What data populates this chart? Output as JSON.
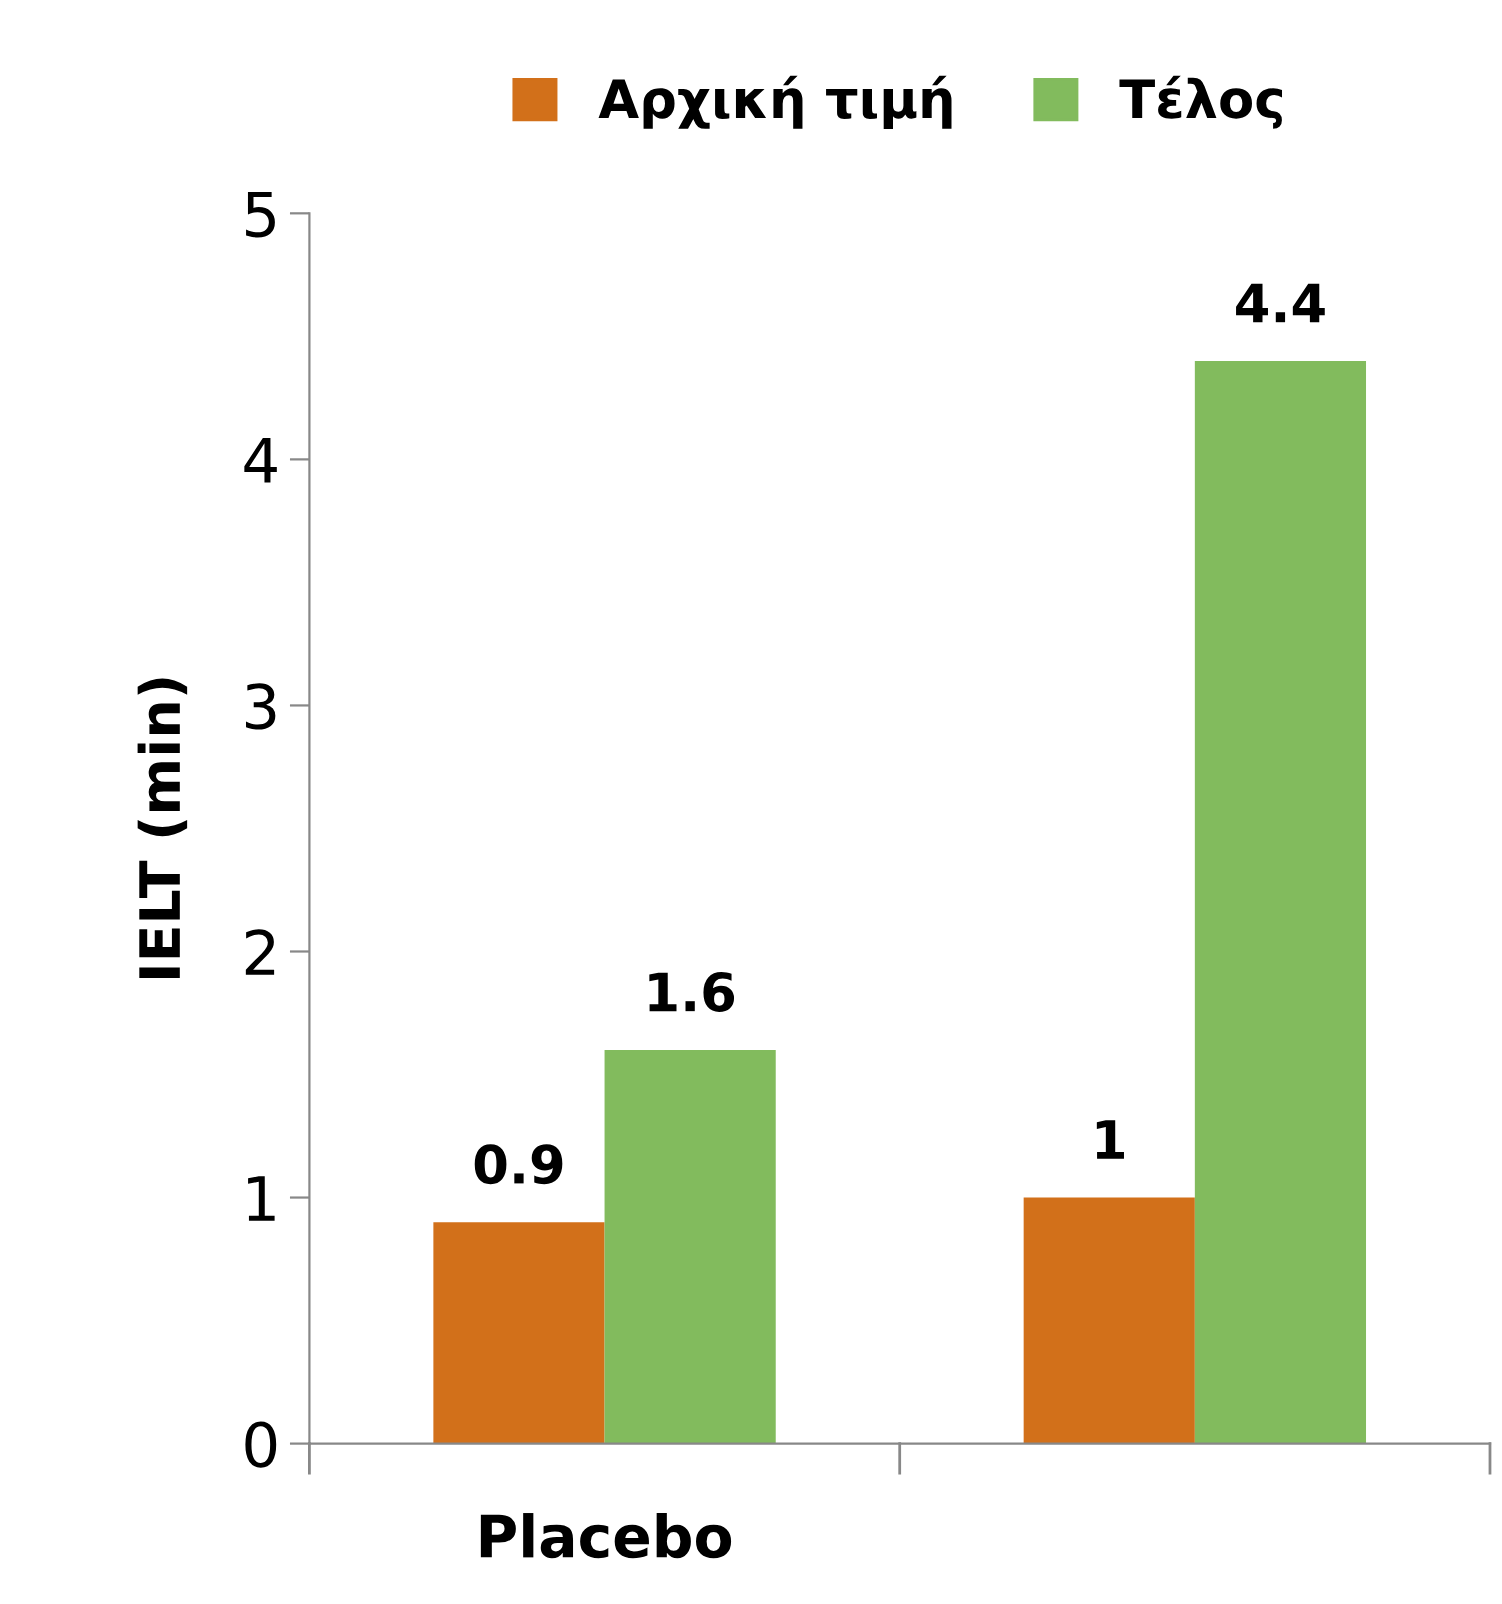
{
  "chart_data": {
    "type": "bar",
    "ylabel": "IELT (min)",
    "categories": [
      "Placebo",
      null
    ],
    "series": [
      {
        "name": "Αρχική τιμή",
        "color": "#d2701a",
        "values": [
          0.9,
          1
        ]
      },
      {
        "name": "Τέλος",
        "color": "#82bb5d",
        "values": [
          1.6,
          4.4
        ]
      }
    ],
    "ylim": [
      0,
      5
    ],
    "yticks": [
      0,
      1,
      2,
      3,
      4,
      5
    ],
    "grid": false,
    "legend": "top",
    "data_labels": true
  }
}
